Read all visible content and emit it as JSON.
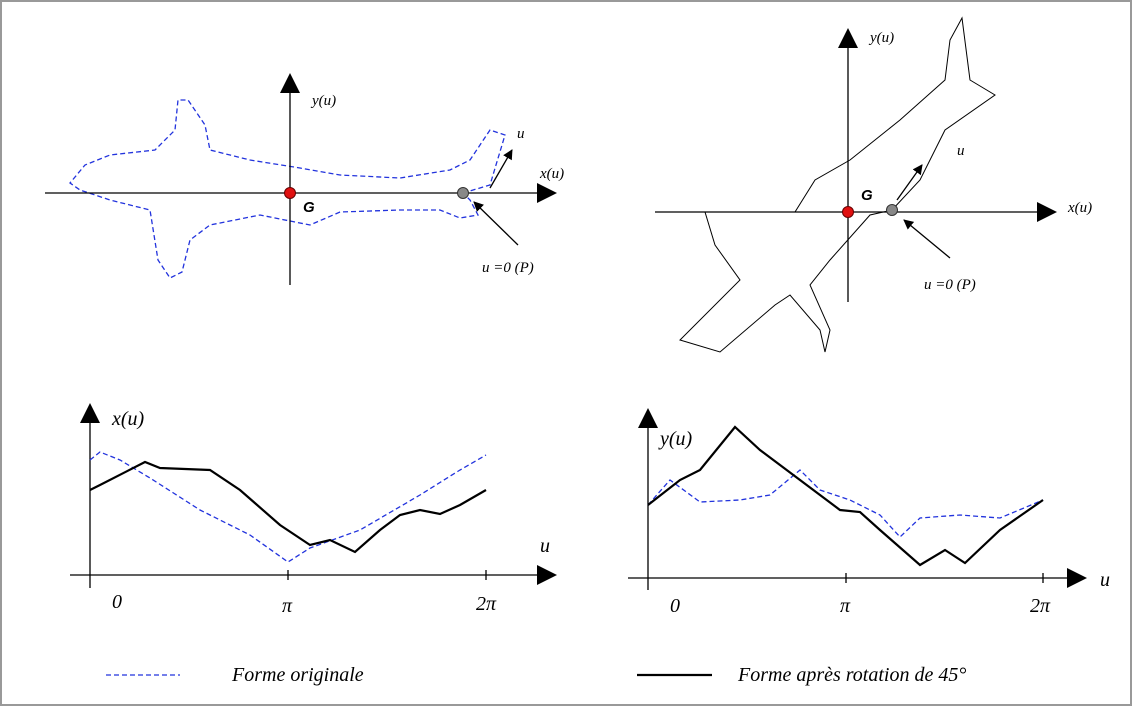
{
  "panels": [
    {
      "axis_y": "y(u)",
      "axis_x": "x(u)",
      "param": "u",
      "centroid": "G",
      "start": "u =0 (P)"
    },
    {
      "axis_y": "y(u)",
      "axis_x": "x(u)",
      "param": "u",
      "centroid": "G",
      "start": "u =0 (P)"
    }
  ],
  "plots": [
    {
      "y_label": "x(u)",
      "x_label": "u",
      "ticks": [
        "0",
        "π",
        "2π"
      ]
    },
    {
      "y_label": "y(u)",
      "x_label": "u",
      "ticks": [
        "0",
        "π",
        "2π"
      ]
    }
  ],
  "legend": [
    "Forme originale",
    "Forme après rotation de 45°"
  ]
}
